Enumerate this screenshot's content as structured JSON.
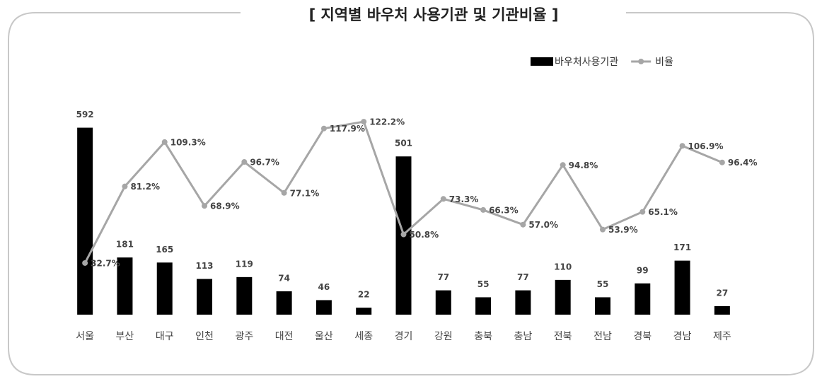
{
  "chart_data": {
    "type": "bar-line",
    "title": "[ 지역별 바우처 사용기관 및 기관비율 ]",
    "categories": [
      "서울",
      "부산",
      "대구",
      "인천",
      "광주",
      "대전",
      "울산",
      "세종",
      "경기",
      "강원",
      "충북",
      "충남",
      "전북",
      "전남",
      "경북",
      "경남",
      "제주"
    ],
    "series": [
      {
        "name": "바우처사용기관",
        "type": "bar",
        "color": "#000000",
        "values": [
          592,
          181,
          165,
          113,
          119,
          74,
          46,
          22,
          501,
          77,
          55,
          77,
          110,
          55,
          99,
          171,
          27
        ]
      },
      {
        "name": "비율",
        "type": "line",
        "axis": "y2",
        "color": "#a6a6a6",
        "values": [
          32.7,
          81.2,
          109.3,
          68.9,
          96.7,
          77.1,
          117.9,
          122.2,
          50.8,
          73.3,
          66.3,
          57.0,
          94.8,
          53.9,
          65.1,
          106.9,
          96.4
        ],
        "value_labels": [
          "32.7%",
          "81.2%",
          "109.3%",
          "68.9%",
          "96.7%",
          "77.1%",
          "117.9%",
          "122.2%",
          "50.8%",
          "73.3%",
          "66.3%",
          "57.0%",
          "94.8%",
          "53.9%",
          "65.1%",
          "106.9%",
          "96.4%"
        ]
      }
    ],
    "ylim": [
      0,
      600
    ],
    "y2lim": [
      0,
      120
    ],
    "legend": "top-right"
  }
}
